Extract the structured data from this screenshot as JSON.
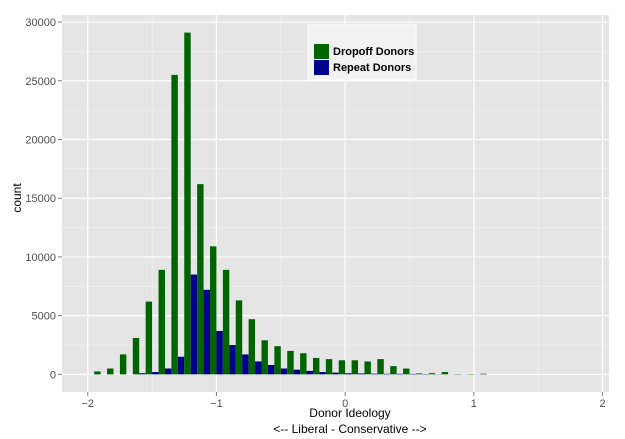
{
  "chart_data": {
    "type": "bar",
    "subtype": "histogram-dodged",
    "xlabel": "Donor Ideology",
    "xlabel_sub": "<-- Liberal - Conservative -->",
    "ylabel": "count",
    "xlim": [
      -2.2,
      2.05
    ],
    "ylim": [
      -1500,
      30600
    ],
    "x_ticks": [
      -2,
      -1,
      0,
      1,
      2
    ],
    "x_tick_labels": [
      "−2",
      "−1",
      "0",
      "1",
      "2"
    ],
    "y_ticks": [
      0,
      5000,
      10000,
      15000,
      20000,
      25000,
      30000
    ],
    "y_tick_labels": [
      "0",
      "5000",
      "10000",
      "15000",
      "20000",
      "25000",
      "30000"
    ],
    "grid": true,
    "legend_position": "top-center",
    "bin_width": 0.1,
    "bin_centers": [
      -1.9,
      -1.8,
      -1.7,
      -1.6,
      -1.5,
      -1.4,
      -1.3,
      -1.2,
      -1.1,
      -1.0,
      -0.9,
      -0.8,
      -0.7,
      -0.6,
      -0.5,
      -0.4,
      -0.3,
      -0.2,
      -0.1,
      0.0,
      0.1,
      0.2,
      0.3,
      0.4,
      0.5,
      0.6,
      0.7,
      0.8,
      0.9,
      1.0,
      1.1,
      1.2,
      1.3,
      1.4,
      1.5,
      1.6,
      1.7,
      1.8
    ],
    "series": [
      {
        "name": "Dropoff Donors",
        "color": "#006400",
        "values": [
          250,
          500,
          1700,
          3100,
          6200,
          8900,
          25500,
          29100,
          16200,
          10900,
          8900,
          6300,
          4700,
          2900,
          2400,
          2000,
          1800,
          1400,
          1300,
          1200,
          1200,
          1100,
          1300,
          700,
          500,
          80,
          100,
          200,
          30,
          30,
          60,
          0,
          0,
          0,
          0,
          0,
          0,
          0
        ]
      },
      {
        "name": "Repeat Donors",
        "color": "#00008b",
        "values": [
          0,
          0,
          0,
          100,
          200,
          500,
          1500,
          8500,
          7200,
          3700,
          2500,
          1700,
          1100,
          800,
          500,
          400,
          300,
          200,
          150,
          100,
          80,
          60,
          50,
          50,
          40,
          30,
          20,
          10,
          10,
          10,
          0,
          0,
          0,
          0,
          0,
          0,
          0,
          0
        ]
      }
    ]
  },
  "colors": {
    "panel_background": "#e5e5e5",
    "grid_major": "#ffffff",
    "grid_minor": "#f2f2f2"
  }
}
